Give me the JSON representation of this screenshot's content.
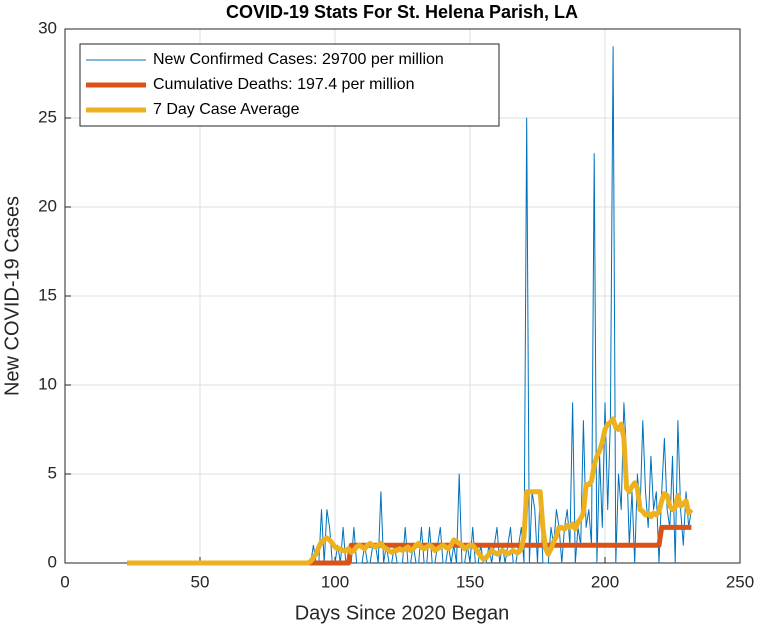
{
  "chart_data": {
    "type": "line",
    "title": "COVID-19 Stats For St. Helena Parish, LA",
    "x_label": "Days Since 2020 Began",
    "y_label": "New COVID-19 Cases",
    "xlim": [
      0,
      250
    ],
    "xticks": [
      0,
      50,
      100,
      150,
      200,
      250
    ],
    "ylim": [
      0,
      30
    ],
    "yticks": [
      0,
      5,
      10,
      15,
      20,
      25,
      30
    ],
    "grid": true,
    "legend": "upper left",
    "x": [
      23,
      24,
      25,
      26,
      27,
      28,
      29,
      30,
      31,
      32,
      33,
      34,
      35,
      36,
      37,
      38,
      39,
      40,
      41,
      42,
      43,
      44,
      45,
      46,
      47,
      48,
      49,
      50,
      51,
      52,
      53,
      54,
      55,
      56,
      57,
      58,
      59,
      60,
      61,
      62,
      63,
      64,
      65,
      66,
      67,
      68,
      69,
      70,
      71,
      72,
      73,
      74,
      75,
      76,
      77,
      78,
      79,
      80,
      81,
      82,
      83,
      84,
      85,
      86,
      87,
      88,
      89,
      90,
      91,
      92,
      93,
      94,
      95,
      96,
      97,
      98,
      99,
      100,
      101,
      102,
      103,
      104,
      105,
      106,
      107,
      108,
      109,
      110,
      111,
      112,
      113,
      114,
      115,
      116,
      117,
      118,
      119,
      120,
      121,
      122,
      123,
      124,
      125,
      126,
      127,
      128,
      129,
      130,
      131,
      132,
      133,
      134,
      135,
      136,
      137,
      138,
      139,
      140,
      141,
      142,
      143,
      144,
      145,
      146,
      147,
      148,
      149,
      150,
      151,
      152,
      153,
      154,
      155,
      156,
      157,
      158,
      159,
      160,
      161,
      162,
      163,
      164,
      165,
      166,
      167,
      168,
      169,
      170,
      171,
      172,
      173,
      174,
      175,
      176,
      177,
      178,
      179,
      180,
      181,
      182,
      183,
      184,
      185,
      186,
      187,
      188,
      189,
      190,
      191,
      192,
      193,
      194,
      195,
      196,
      197,
      198,
      199,
      200,
      201,
      202,
      203,
      204,
      205,
      206,
      207,
      208,
      209,
      210,
      211,
      212,
      213,
      214,
      215,
      216,
      217,
      218,
      219,
      220,
      221,
      222,
      223,
      224,
      225,
      226,
      227,
      228,
      229,
      230,
      231,
      232
    ],
    "series": [
      {
        "name": "New Confirmed Cases: 29700 per million",
        "color": "#0072bd",
        "values": [
          0,
          0,
          0,
          0,
          0,
          0,
          0,
          0,
          0,
          0,
          0,
          0,
          0,
          0,
          0,
          0,
          0,
          0,
          0,
          0,
          0,
          0,
          0,
          0,
          0,
          0,
          0,
          0,
          0,
          0,
          0,
          0,
          0,
          0,
          0,
          0,
          0,
          0,
          0,
          0,
          0,
          0,
          0,
          0,
          0,
          0,
          0,
          0,
          0,
          0,
          0,
          0,
          0,
          0,
          0,
          0,
          0,
          0,
          0,
          0,
          0,
          0,
          0,
          0,
          0,
          0,
          0,
          0,
          0,
          1,
          0,
          0,
          3,
          0,
          3,
          2,
          0,
          0,
          1,
          0,
          2,
          0,
          0,
          0,
          2,
          0,
          0,
          0,
          1,
          0,
          0,
          1,
          1,
          0,
          4,
          0,
          1,
          0,
          0,
          1,
          0,
          0,
          0,
          2,
          0,
          0,
          1,
          0,
          0,
          2,
          0,
          0,
          2,
          0,
          0,
          1,
          2,
          0,
          0,
          1,
          0,
          1,
          0,
          5,
          0,
          0,
          1,
          0,
          2,
          0,
          0,
          1,
          0,
          0,
          1,
          0,
          1,
          2,
          0,
          1,
          0,
          1,
          2,
          0,
          0,
          1,
          2,
          0,
          25,
          0,
          4,
          3,
          0,
          4,
          0,
          0,
          0,
          2,
          1,
          3,
          2,
          0,
          2,
          3,
          1,
          9,
          0,
          2,
          1,
          8,
          2,
          3,
          1,
          23,
          0,
          6,
          2,
          9,
          3,
          8,
          29,
          0,
          5,
          3,
          9,
          6,
          1,
          4,
          0,
          5,
          3,
          8,
          4,
          2,
          6,
          3,
          4,
          0,
          4,
          7,
          3,
          2,
          6,
          0,
          8,
          3,
          1,
          4,
          2,
          3
        ]
      },
      {
        "name": "Cumulative Deaths: 197.4 per million",
        "color": "#d95319",
        "values": [
          0,
          0,
          0,
          0,
          0,
          0,
          0,
          0,
          0,
          0,
          0,
          0,
          0,
          0,
          0,
          0,
          0,
          0,
          0,
          0,
          0,
          0,
          0,
          0,
          0,
          0,
          0,
          0,
          0,
          0,
          0,
          0,
          0,
          0,
          0,
          0,
          0,
          0,
          0,
          0,
          0,
          0,
          0,
          0,
          0,
          0,
          0,
          0,
          0,
          0,
          0,
          0,
          0,
          0,
          0,
          0,
          0,
          0,
          0,
          0,
          0,
          0,
          0,
          0,
          0,
          0,
          0,
          0,
          0,
          0,
          0,
          0,
          0,
          0,
          0,
          0,
          0,
          0,
          0,
          0,
          0,
          0,
          0,
          1,
          1,
          1,
          1,
          1,
          1,
          1,
          1,
          1,
          1,
          1,
          1,
          1,
          1,
          1,
          1,
          1,
          1,
          1,
          1,
          1,
          1,
          1,
          1,
          1,
          1,
          1,
          1,
          1,
          1,
          1,
          1,
          1,
          1,
          1,
          1,
          1,
          1,
          1,
          1,
          1,
          1,
          1,
          1,
          1,
          1,
          1,
          1,
          1,
          1,
          1,
          1,
          1,
          1,
          1,
          1,
          1,
          1,
          1,
          1,
          1,
          1,
          1,
          1,
          1,
          1,
          1,
          1,
          1,
          1,
          1,
          1,
          1,
          1,
          1,
          1,
          1,
          1,
          1,
          1,
          1,
          1,
          1,
          1,
          1,
          1,
          1,
          1,
          1,
          1,
          1,
          1,
          1,
          1,
          1,
          1,
          1,
          1,
          1,
          1,
          1,
          1,
          1,
          1,
          1,
          1,
          1,
          1,
          1,
          1,
          1,
          1,
          1,
          1,
          1,
          2,
          2,
          2,
          2,
          2,
          2,
          2,
          2,
          2,
          2,
          2,
          2
        ]
      },
      {
        "name": "7 Day Case Average",
        "color": "#edb120",
        "values": [
          0,
          0,
          0,
          0,
          0,
          0,
          0,
          0,
          0,
          0,
          0,
          0,
          0,
          0,
          0,
          0,
          0,
          0,
          0,
          0,
          0,
          0,
          0,
          0,
          0,
          0,
          0,
          0,
          0,
          0,
          0,
          0,
          0,
          0,
          0,
          0,
          0,
          0,
          0,
          0,
          0,
          0,
          0,
          0,
          0,
          0,
          0,
          0,
          0,
          0,
          0,
          0,
          0,
          0,
          0,
          0,
          0,
          0,
          0,
          0,
          0,
          0,
          0,
          0,
          0,
          0,
          0,
          0,
          0.1,
          0.3,
          0.5,
          0.9,
          1.2,
          1.3,
          1.4,
          1.3,
          1.1,
          0.9,
          0.8,
          0.8,
          0.7,
          0.7,
          0.8,
          0.6,
          0.7,
          0.9,
          1,
          0.9,
          0.8,
          1,
          1.1,
          1,
          0.9,
          1,
          1.1,
          0.9,
          0.8,
          0.7,
          0.6,
          0.7,
          0.7,
          0.8,
          0.7,
          0.8,
          0.9,
          0.7,
          0.8,
          1,
          1.1,
          0.9,
          0.8,
          0.9,
          1,
          0.9,
          0.7,
          0.8,
          0.9,
          1,
          0.9,
          0.8,
          1,
          1.3,
          1.2,
          1.1,
          1,
          0.8,
          0.9,
          1,
          1,
          0.8,
          0.6,
          0.4,
          0.2,
          0.3,
          0.5,
          0.7,
          0.6,
          0.5,
          0.6,
          0.7,
          0.6,
          0.5,
          0.6,
          0.7,
          0.6,
          0.6,
          0.8,
          1.5,
          4,
          4,
          4,
          4,
          4,
          4,
          2,
          0.8,
          0.5,
          0.8,
          1.2,
          1.5,
          2,
          2,
          1.9,
          2.1,
          2,
          2.2,
          1.9,
          2.3,
          2.5,
          2.8,
          4.4,
          4.4,
          4.6,
          5.5,
          6,
          6.3,
          6.8,
          7.5,
          7.8,
          7.9,
          8.1,
          7.6,
          7.5,
          7.8,
          7,
          4.2,
          4,
          4.3,
          4.5,
          4.2,
          3,
          2.9,
          2.7,
          2.8,
          2.6,
          2.8,
          2.7,
          2.9,
          3.5,
          3.9,
          3.8,
          3.2,
          3,
          3.1,
          3.8,
          3.2,
          3.3,
          3.5,
          2.8,
          3
        ]
      }
    ]
  }
}
